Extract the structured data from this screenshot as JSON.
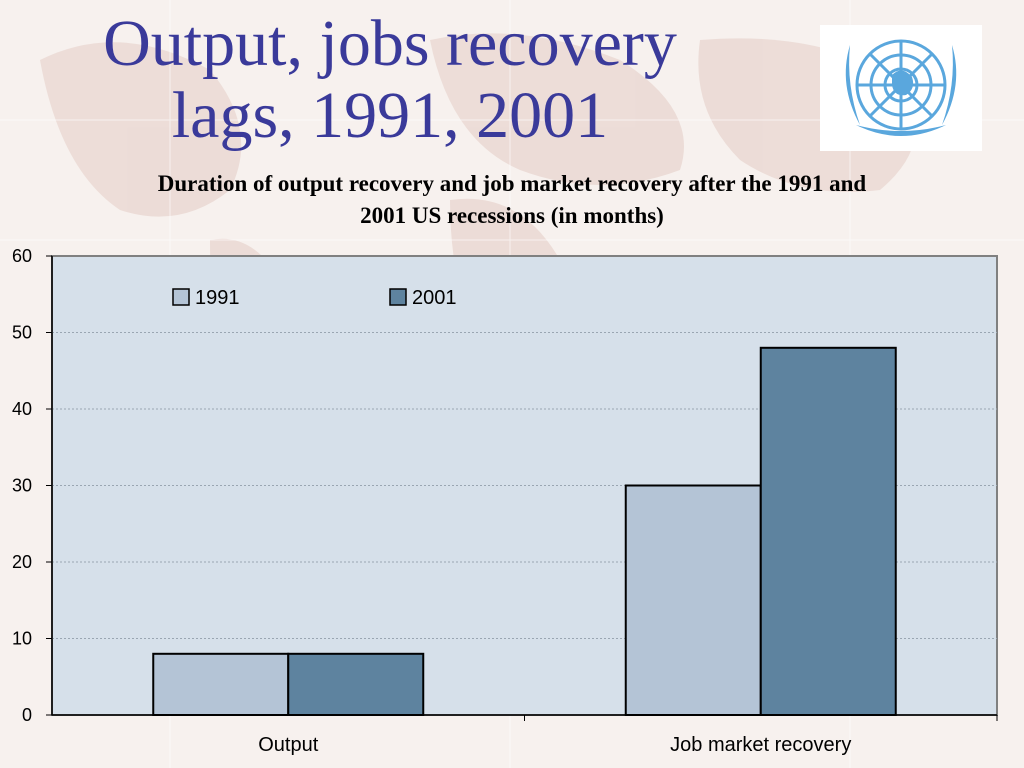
{
  "slide": {
    "title_line1": "Output, jobs recovery",
    "title_line2": "lags, 1991, 2001",
    "logo_icon": "united-nations-emblem-icon"
  },
  "chart_data": {
    "type": "bar",
    "title": "Duration of output recovery and job market recovery after the 1991 and 2001 US recessions (in months)",
    "title_line1": "Duration of output recovery and job market recovery after the 1991 and",
    "title_line2": "2001 US recessions (in months)",
    "categories": [
      "Output",
      "Job market recovery"
    ],
    "series": [
      {
        "name": "1991",
        "values": [
          8,
          30
        ],
        "color": "#b4c4d6"
      },
      {
        "name": "2001",
        "values": [
          8,
          48
        ],
        "color": "#5e839f"
      }
    ],
    "ylim": [
      0,
      60
    ],
    "yticks": [
      0,
      10,
      20,
      30,
      40,
      50,
      60
    ],
    "grid": true,
    "legend_position": "top",
    "plot_background": "#d6e0ea"
  }
}
